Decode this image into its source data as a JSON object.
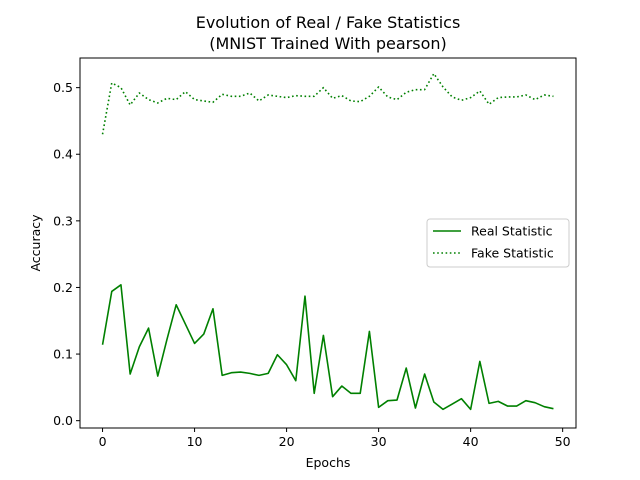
{
  "chart_data": {
    "type": "line",
    "title": "Evolution of Real / Fake Statistics",
    "subtitle": "(MNIST Trained With pearson)",
    "xlabel": "Epochs",
    "ylabel": "Accuracy",
    "xlim": [
      -2.45,
      51.45
    ],
    "ylim": [
      -0.011,
      0.5445
    ],
    "x_ticks": [
      0,
      10,
      20,
      30,
      40,
      50
    ],
    "y_ticks": [
      0.0,
      0.1,
      0.2,
      0.3,
      0.4,
      0.5
    ],
    "x_tick_labels": [
      "0",
      "10",
      "20",
      "30",
      "40",
      "50"
    ],
    "y_tick_labels": [
      "0.0",
      "0.1",
      "0.2",
      "0.3",
      "0.4",
      "0.5"
    ],
    "grid": false,
    "legend_position": "center-right",
    "color": "#008000",
    "x": [
      0,
      1,
      2,
      3,
      4,
      5,
      6,
      7,
      8,
      9,
      10,
      11,
      12,
      13,
      14,
      15,
      16,
      17,
      18,
      19,
      20,
      21,
      22,
      23,
      24,
      25,
      26,
      27,
      28,
      29,
      30,
      31,
      32,
      33,
      34,
      35,
      36,
      37,
      38,
      39,
      40,
      41,
      42,
      43,
      44,
      45,
      46,
      47,
      48,
      49
    ],
    "series": [
      {
        "name": "Real Statistic",
        "style": "solid",
        "values": [
          0.114,
          0.194,
          0.204,
          0.07,
          0.111,
          0.139,
          0.067,
          0.122,
          0.174,
          0.145,
          0.116,
          0.13,
          0.168,
          0.068,
          0.072,
          0.073,
          0.071,
          0.068,
          0.071,
          0.099,
          0.084,
          0.06,
          0.187,
          0.041,
          0.128,
          0.036,
          0.052,
          0.041,
          0.041,
          0.134,
          0.02,
          0.03,
          0.031,
          0.079,
          0.019,
          0.07,
          0.028,
          0.017,
          0.025,
          0.033,
          0.017,
          0.089,
          0.026,
          0.029,
          0.022,
          0.022,
          0.03,
          0.027,
          0.021,
          0.018
        ]
      },
      {
        "name": "Fake Statistic",
        "style": "dotted",
        "values": [
          0.43,
          0.507,
          0.5,
          0.474,
          0.492,
          0.482,
          0.477,
          0.484,
          0.482,
          0.494,
          0.482,
          0.48,
          0.478,
          0.49,
          0.487,
          0.487,
          0.492,
          0.48,
          0.489,
          0.487,
          0.485,
          0.488,
          0.487,
          0.487,
          0.5,
          0.484,
          0.488,
          0.48,
          0.479,
          0.487,
          0.501,
          0.486,
          0.482,
          0.493,
          0.497,
          0.497,
          0.521,
          0.501,
          0.486,
          0.481,
          0.485,
          0.495,
          0.475,
          0.485,
          0.486,
          0.486,
          0.489,
          0.482,
          0.489,
          0.487
        ]
      }
    ]
  }
}
